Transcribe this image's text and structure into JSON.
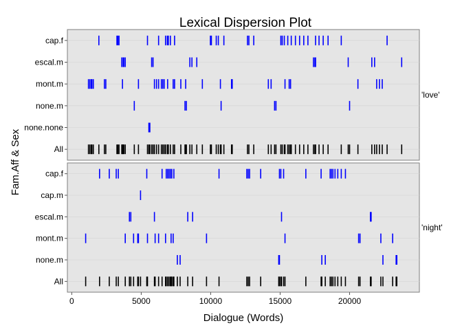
{
  "chart_data": {
    "type": "dispersion",
    "title": "Lexical Dispersion Plot",
    "xlabel": "Dialogue (Words)",
    "ylabel": "Fam.Aff & Sex",
    "xlim": [
      -300,
      25200
    ],
    "x_ticks": [
      0,
      5000,
      10000,
      15000,
      20000
    ],
    "x_tick_labels": [
      "0",
      "5000",
      "10000",
      "15000",
      "20000"
    ],
    "colors": {
      "group": "#0000ff",
      "all": "#000000",
      "background": "#e5e5e5",
      "grid": "#d3d3d3"
    },
    "panels": [
      {
        "label": "'love'",
        "rows": [
          {
            "name": "cap.f",
            "color": "#0000ff",
            "x": [
              1950,
              3250,
              3320,
              3400,
              5450,
              6250,
              6750,
              6880,
              6950,
              7100,
              7400,
              9980,
              10050,
              10400,
              10550,
              10950,
              12650,
              12750,
              13100,
              15050,
              15150,
              15300,
              15550,
              15800,
              16100,
              16400,
              16700,
              17000,
              17550,
              17800,
              18100,
              18450,
              19400,
              22700
            ]
          },
          {
            "name": "escal.m",
            "color": "#0000ff",
            "x": [
              3600,
              3700,
              3750,
              3850,
              5750,
              5850,
              8500,
              8650,
              9000,
              17400,
              17500,
              17550,
              19900,
              21600,
              21800,
              23750
            ]
          },
          {
            "name": "mont.m",
            "color": "#0000ff",
            "x": [
              1200,
              1300,
              1400,
              1450,
              1550,
              2350,
              2450,
              3650,
              4800,
              5950,
              6100,
              6250,
              6450,
              6550,
              6650,
              6900,
              7300,
              7400,
              7850,
              8200,
              9400,
              10700,
              11500,
              11550,
              14150,
              14350,
              15350,
              15650,
              15750,
              20600,
              21950,
              22150,
              22350
            ]
          },
          {
            "name": "none.m",
            "color": "#0000ff",
            "x": [
              4500,
              8150,
              8250,
              10750,
              14600,
              14700,
              20000
            ]
          },
          {
            "name": "none.none",
            "color": "#0000ff",
            "x": [
              5550,
              5620
            ]
          },
          {
            "name": "All",
            "color": "#000000",
            "x": [
              1200,
              1300,
              1400,
              1450,
              1550,
              1950,
              2350,
              2450,
              3250,
              3320,
              3400,
              3600,
              3650,
              3700,
              3750,
              3850,
              4500,
              4800,
              5450,
              5550,
              5620,
              5750,
              5850,
              5950,
              6100,
              6250,
              6450,
              6550,
              6650,
              6750,
              6880,
              6900,
              6950,
              7100,
              7300,
              7400,
              7850,
              8150,
              8200,
              8250,
              8500,
              8650,
              9000,
              9400,
              9980,
              10050,
              10400,
              10550,
              10700,
              10750,
              10950,
              11500,
              11550,
              12650,
              12750,
              13100,
              14150,
              14350,
              14600,
              14700,
              15050,
              15150,
              15300,
              15350,
              15550,
              15650,
              15750,
              15800,
              16100,
              16400,
              16700,
              17000,
              17400,
              17500,
              17550,
              17800,
              18100,
              18450,
              19400,
              19900,
              20000,
              20600,
              21600,
              21800,
              21950,
              22150,
              22350,
              22700,
              23750
            ]
          }
        ]
      },
      {
        "label": "'night'",
        "rows": [
          {
            "name": "cap.f",
            "color": "#0000ff",
            "x": [
              2000,
              2700,
              3200,
              3350,
              5400,
              6500,
              6800,
              6900,
              7000,
              7100,
              7200,
              7350,
              10600,
              12600,
              12700,
              12800,
              13600,
              14950,
              15050,
              15250,
              16850,
              17950,
              18600,
              18700,
              18800,
              18950,
              19150,
              19400,
              19700
            ]
          },
          {
            "name": "cap.m",
            "color": "#0000ff",
            "x": [
              4950
            ]
          },
          {
            "name": "escal.m",
            "color": "#0000ff",
            "x": [
              4150,
              4250,
              5950,
              8350,
              8700,
              15100,
              21500,
              21550
            ]
          },
          {
            "name": "mont.m",
            "color": "#0000ff",
            "x": [
              1000,
              3850,
              4450,
              4750,
              4800,
              5450,
              6000,
              6250,
              6750,
              7150,
              7300,
              9700,
              15350,
              20650,
              20750,
              22250,
              23100
            ]
          },
          {
            "name": "none.m",
            "color": "#0000ff",
            "x": [
              7600,
              7800,
              14900,
              14950,
              18000,
              18250,
              22400,
              23350,
              23400
            ]
          },
          {
            "name": "All",
            "color": "#000000",
            "x": [
              1000,
              2000,
              2700,
              3200,
              3350,
              3850,
              4150,
              4250,
              4450,
              4750,
              4800,
              4950,
              5400,
              5450,
              5950,
              6000,
              6250,
              6500,
              6750,
              6800,
              6900,
              7000,
              7100,
              7150,
              7200,
              7300,
              7350,
              7600,
              7800,
              8350,
              8700,
              9700,
              10600,
              12600,
              12700,
              12800,
              13600,
              14900,
              14950,
              15050,
              15100,
              15250,
              15350,
              16850,
              17950,
              18000,
              18250,
              18600,
              18700,
              18800,
              18950,
              19150,
              19400,
              19700,
              20650,
              20750,
              21500,
              21550,
              22250,
              22400,
              23100,
              23350,
              23400
            ]
          }
        ]
      }
    ]
  }
}
